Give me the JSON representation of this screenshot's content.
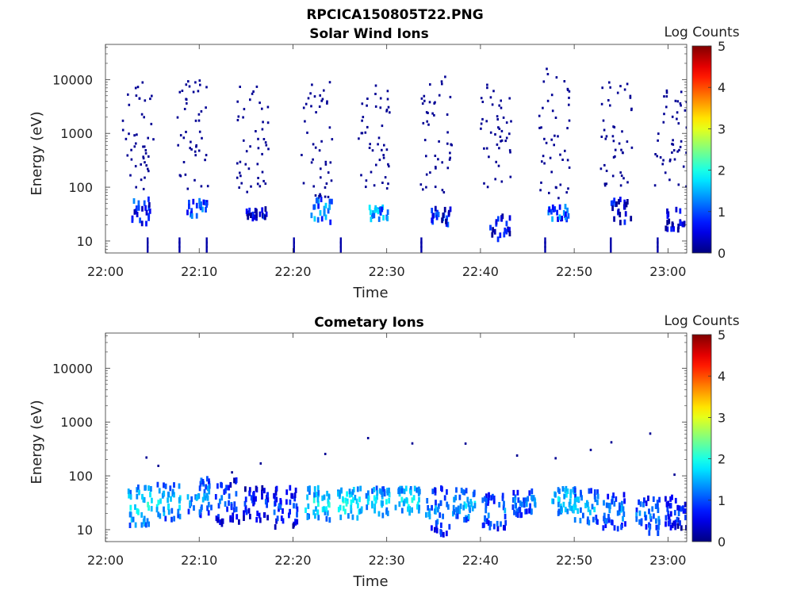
{
  "figure_title": "RPCICA150805T22.PNG",
  "colorbar": {
    "label": "Log Counts",
    "ticks": [
      "0",
      "1",
      "2",
      "3",
      "4",
      "5"
    ],
    "min": 0,
    "max": 5,
    "colormap": "jet"
  },
  "chart_data": [
    {
      "type": "heatmap",
      "title": "Solar Wind Ions",
      "xlabel": "Time",
      "ylabel": "Energy (eV)",
      "x_ticks": [
        "22:00",
        "22:10",
        "22:20",
        "22:30",
        "22:40",
        "22:50",
        "23:00"
      ],
      "x_range_minutes": [
        0,
        62
      ],
      "y_ticks": [
        "10",
        "100",
        "1000",
        "10000"
      ],
      "y_scale": "log",
      "y_range": [
        6,
        45000
      ],
      "bursts": [
        {
          "t": 3.4,
          "sparse_lo": 90,
          "sparse_hi": 9000,
          "core_e": [
            18,
            60
          ],
          "core_level": 1.4,
          "spikes": [
            1
          ]
        },
        {
          "t": 9.2,
          "sparse_lo": 90,
          "sparse_hi": 10000,
          "core_e": [
            28,
            60
          ],
          "core_level": 1.5,
          "spikes": [
            -1.4,
            1.5
          ]
        },
        {
          "t": 15.6,
          "sparse_lo": 80,
          "sparse_hi": 8000,
          "core_e": [
            25,
            40
          ],
          "core_level": 1.0,
          "spikes": []
        },
        {
          "t": 22.5,
          "sparse_lo": 60,
          "sparse_hi": 9000,
          "core_e": [
            22,
            60
          ],
          "core_level": 1.9,
          "spikes": [
            -2.5,
            2.5
          ]
        },
        {
          "t": 28.6,
          "sparse_lo": 90,
          "sparse_hi": 9000,
          "core_e": [
            25,
            45
          ],
          "core_level": 1.8,
          "spikes": []
        },
        {
          "t": 35.2,
          "sparse_lo": 80,
          "sparse_hi": 14000,
          "core_e": [
            20,
            40
          ],
          "core_level": 1.2,
          "spikes": [
            -1.6
          ]
        },
        {
          "t": 41.6,
          "sparse_lo": 100,
          "sparse_hi": 9000,
          "core_e": [
            10,
            30
          ],
          "core_level": 1.0,
          "spikes": []
        },
        {
          "t": 47.8,
          "sparse_lo": 60,
          "sparse_hi": 20000,
          "core_e": [
            25,
            45
          ],
          "core_level": 1.6,
          "spikes": [
            -1
          ]
        },
        {
          "t": 54.4,
          "sparse_lo": 100,
          "sparse_hi": 9000,
          "core_e": [
            22,
            60
          ],
          "core_level": 1.0,
          "spikes": [
            -0.6
          ]
        },
        {
          "t": 60.2,
          "sparse_lo": 100,
          "sparse_hi": 9000,
          "core_e": [
            15,
            40
          ],
          "core_level": 0.8,
          "spikes": [
            -1.4
          ]
        }
      ]
    },
    {
      "type": "heatmap",
      "title": "Cometary Ions",
      "xlabel": "Time",
      "ylabel": "Energy (eV)",
      "x_ticks": [
        "22:00",
        "22:10",
        "22:20",
        "22:30",
        "22:40",
        "22:50",
        "23:00"
      ],
      "x_range_minutes": [
        0,
        62
      ],
      "y_ticks": [
        "10",
        "100",
        "1000",
        "10000"
      ],
      "y_scale": "log",
      "y_range": [
        6,
        45000
      ],
      "bursts": [
        {
          "t": 3.4,
          "e_lo": 12,
          "e_hi": 65,
          "level": 2.2
        },
        {
          "t": 6.5,
          "e_lo": 15,
          "e_hi": 70,
          "level": 2.0
        },
        {
          "t": 9.8,
          "e_lo": 18,
          "e_hi": 90,
          "level": 1.8
        },
        {
          "t": 12.8,
          "e_lo": 12,
          "e_hi": 85,
          "level": 1.5
        },
        {
          "t": 15.8,
          "e_lo": 15,
          "e_hi": 60,
          "level": 1.2
        },
        {
          "t": 19.0,
          "e_lo": 11,
          "e_hi": 60,
          "level": 1.4
        },
        {
          "t": 22.4,
          "e_lo": 15,
          "e_hi": 60,
          "level": 2.2
        },
        {
          "t": 25.8,
          "e_lo": 15,
          "e_hi": 60,
          "level": 2.3
        },
        {
          "t": 28.8,
          "e_lo": 18,
          "e_hi": 60,
          "level": 2.0
        },
        {
          "t": 32.0,
          "e_lo": 20,
          "e_hi": 60,
          "level": 2.1
        },
        {
          "t": 35.2,
          "e_lo": 8,
          "e_hi": 60,
          "level": 1.7
        },
        {
          "t": 38.0,
          "e_lo": 15,
          "e_hi": 55,
          "level": 1.9
        },
        {
          "t": 41.2,
          "e_lo": 10,
          "e_hi": 45,
          "level": 1.6
        },
        {
          "t": 44.4,
          "e_lo": 18,
          "e_hi": 55,
          "level": 1.6
        },
        {
          "t": 48.6,
          "e_lo": 20,
          "e_hi": 60,
          "level": 2.0
        },
        {
          "t": 51.0,
          "e_lo": 12,
          "e_hi": 55,
          "level": 1.9
        },
        {
          "t": 54.0,
          "e_lo": 10,
          "e_hi": 45,
          "level": 1.7
        },
        {
          "t": 57.6,
          "e_lo": 8,
          "e_hi": 40,
          "level": 1.6
        },
        {
          "t": 60.8,
          "e_lo": 10,
          "e_hi": 40,
          "level": 1.2
        }
      ]
    }
  ]
}
